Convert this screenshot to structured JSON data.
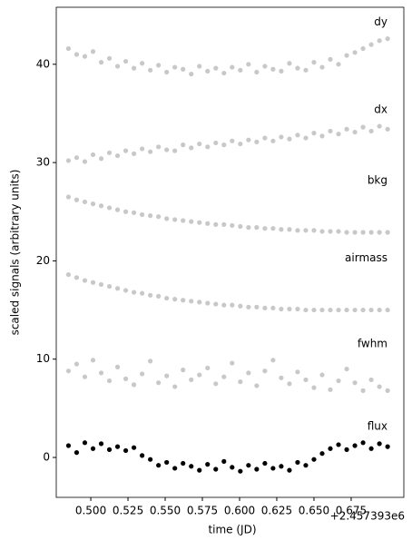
{
  "chart_data": {
    "type": "scatter",
    "x_label": "time (JD)",
    "y_label": "scaled signals (arbitrary units)",
    "x_offset_text": "+2.457393e6",
    "x": [
      0.485,
      0.4905,
      0.496,
      0.5015,
      0.507,
      0.5125,
      0.518,
      0.5235,
      0.529,
      0.5345,
      0.54,
      0.5455,
      0.551,
      0.5565,
      0.562,
      0.5675,
      0.573,
      0.5785,
      0.584,
      0.5895,
      0.595,
      0.6005,
      0.606,
      0.6115,
      0.617,
      0.6225,
      0.628,
      0.6335,
      0.639,
      0.6445,
      0.65,
      0.6555,
      0.661,
      0.6665,
      0.672,
      0.6775,
      0.683,
      0.6885,
      0.694,
      0.6995
    ],
    "series": [
      {
        "name": "dy",
        "color": "#c8c8c8",
        "values": [
          41.6,
          41.0,
          40.8,
          41.3,
          40.2,
          40.6,
          39.8,
          40.3,
          39.6,
          40.1,
          39.4,
          39.9,
          39.2,
          39.7,
          39.5,
          39.0,
          39.8,
          39.3,
          39.6,
          39.1,
          39.7,
          39.4,
          40.0,
          39.2,
          39.8,
          39.5,
          39.3,
          40.1,
          39.6,
          39.4,
          40.2,
          39.7,
          40.5,
          40.0,
          40.9,
          41.2,
          41.6,
          42.0,
          42.4,
          42.6
        ]
      },
      {
        "name": "dx",
        "color": "#c8c8c8",
        "values": [
          30.2,
          30.5,
          30.1,
          30.8,
          30.4,
          31.0,
          30.7,
          31.2,
          30.9,
          31.4,
          31.1,
          31.6,
          31.3,
          31.2,
          31.8,
          31.5,
          31.9,
          31.6,
          32.0,
          31.8,
          32.2,
          31.9,
          32.3,
          32.1,
          32.5,
          32.2,
          32.6,
          32.4,
          32.8,
          32.5,
          33.0,
          32.7,
          33.2,
          32.9,
          33.4,
          33.1,
          33.6,
          33.2,
          33.7,
          33.4
        ]
      },
      {
        "name": "bkg",
        "color": "#c8c8c8",
        "values": [
          26.5,
          26.2,
          26.0,
          25.8,
          25.6,
          25.4,
          25.2,
          25.0,
          24.9,
          24.7,
          24.6,
          24.5,
          24.3,
          24.2,
          24.1,
          24.0,
          23.9,
          23.8,
          23.7,
          23.7,
          23.6,
          23.5,
          23.4,
          23.4,
          23.3,
          23.3,
          23.2,
          23.2,
          23.1,
          23.1,
          23.1,
          23.0,
          23.0,
          23.0,
          22.9,
          22.9,
          22.9,
          22.9,
          22.9,
          22.9
        ]
      },
      {
        "name": "airmass",
        "color": "#c8c8c8",
        "values": [
          18.6,
          18.3,
          18.0,
          17.8,
          17.6,
          17.4,
          17.2,
          17.0,
          16.8,
          16.7,
          16.5,
          16.4,
          16.2,
          16.1,
          16.0,
          15.9,
          15.8,
          15.7,
          15.6,
          15.5,
          15.5,
          15.4,
          15.3,
          15.3,
          15.2,
          15.2,
          15.1,
          15.1,
          15.1,
          15.0,
          15.0,
          15.0,
          15.0,
          15.0,
          15.0,
          15.0,
          15.0,
          15.0,
          15.0,
          15.0
        ]
      },
      {
        "name": "fwhm",
        "color": "#c8c8c8",
        "values": [
          8.8,
          9.5,
          8.2,
          9.9,
          8.6,
          7.8,
          9.2,
          8.0,
          7.4,
          8.5,
          9.8,
          7.6,
          8.3,
          7.2,
          8.9,
          7.9,
          8.4,
          9.1,
          7.5,
          8.2,
          9.6,
          7.7,
          8.6,
          7.3,
          8.8,
          9.9,
          8.1,
          7.5,
          8.7,
          7.9,
          7.1,
          8.4,
          6.9,
          7.8,
          9.0,
          7.6,
          6.8,
          7.9,
          7.2,
          6.8
        ]
      },
      {
        "name": "flux",
        "color": "#000000",
        "values": [
          1.2,
          0.5,
          1.5,
          0.9,
          1.4,
          0.8,
          1.1,
          0.7,
          1.0,
          0.2,
          -0.2,
          -0.8,
          -0.5,
          -1.1,
          -0.6,
          -0.9,
          -1.3,
          -0.7,
          -1.2,
          -0.4,
          -1.0,
          -1.4,
          -0.8,
          -1.2,
          -0.6,
          -1.1,
          -0.9,
          -1.3,
          -0.5,
          -0.8,
          -0.2,
          0.4,
          0.9,
          1.3,
          0.8,
          1.2,
          1.5,
          0.9,
          1.4,
          1.1
        ]
      }
    ],
    "xlim": [
      0.4768,
      0.7104
    ],
    "xticks": [
      {
        "value": 0.5,
        "label": "0.500"
      },
      0.525,
      {
        "value": 0.55,
        "label": "0.550"
      },
      0.575,
      {
        "value": 0.6,
        "label": "0.600"
      },
      0.625,
      {
        "value": 0.65,
        "label": "0.650"
      },
      0.675
    ],
    "ylim": [
      -4.06,
      45.8
    ],
    "yticks": [
      0,
      10,
      20,
      30,
      40
    ],
    "grid": false
  }
}
